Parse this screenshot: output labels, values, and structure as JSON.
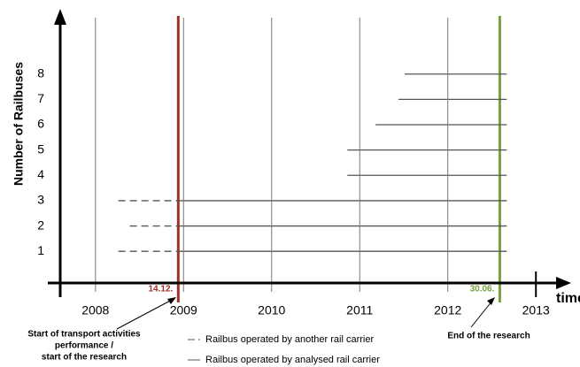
{
  "chart_data": {
    "type": "timeline",
    "y_label": "Number of Railbuses",
    "x_label": "time",
    "xlim": [
      2007.6,
      2013.4
    ],
    "ylim": [
      -0.25,
      10.4
    ],
    "xticks": [
      2008,
      2009,
      2010,
      2011,
      2012,
      2013
    ],
    "yticks": [
      1,
      2,
      3,
      4,
      5,
      6,
      7,
      8
    ],
    "series": [
      {
        "name": "Railbus operated by another rail carrier",
        "style": "dashed",
        "color": "#555555",
        "segments": [
          {
            "y": 1,
            "x": [
              2008.26,
              2008.94
            ]
          },
          {
            "y": 2,
            "x": [
              2008.39,
              2008.94
            ]
          },
          {
            "y": 3,
            "x": [
              2008.26,
              2008.94
            ]
          }
        ]
      },
      {
        "name": "Railbus operated by analysed rail carrier",
        "style": "solid",
        "color": "#555555",
        "segments": [
          {
            "y": 1,
            "x": [
              2008.94,
              2012.67
            ]
          },
          {
            "y": 2,
            "x": [
              2008.94,
              2012.67
            ]
          },
          {
            "y": 3,
            "x": [
              2008.94,
              2012.67
            ]
          },
          {
            "y": 4,
            "x": [
              2010.86,
              2012.67
            ]
          },
          {
            "y": 5,
            "x": [
              2010.86,
              2012.67
            ]
          },
          {
            "y": 6,
            "x": [
              2011.18,
              2012.67
            ]
          },
          {
            "y": 7,
            "x": [
              2011.44,
              2012.67
            ]
          },
          {
            "y": 8,
            "x": [
              2011.51,
              2012.67
            ]
          }
        ]
      }
    ],
    "markers": [
      {
        "label": "14.12.",
        "x": 2008.94,
        "color": "#a0302a",
        "note": [
          "Start of transport activities",
          "performance /",
          "start of the research"
        ]
      },
      {
        "label": "30.06.",
        "x": 2012.59,
        "color": "#77a040",
        "note": [
          "End of the research"
        ]
      }
    ]
  }
}
